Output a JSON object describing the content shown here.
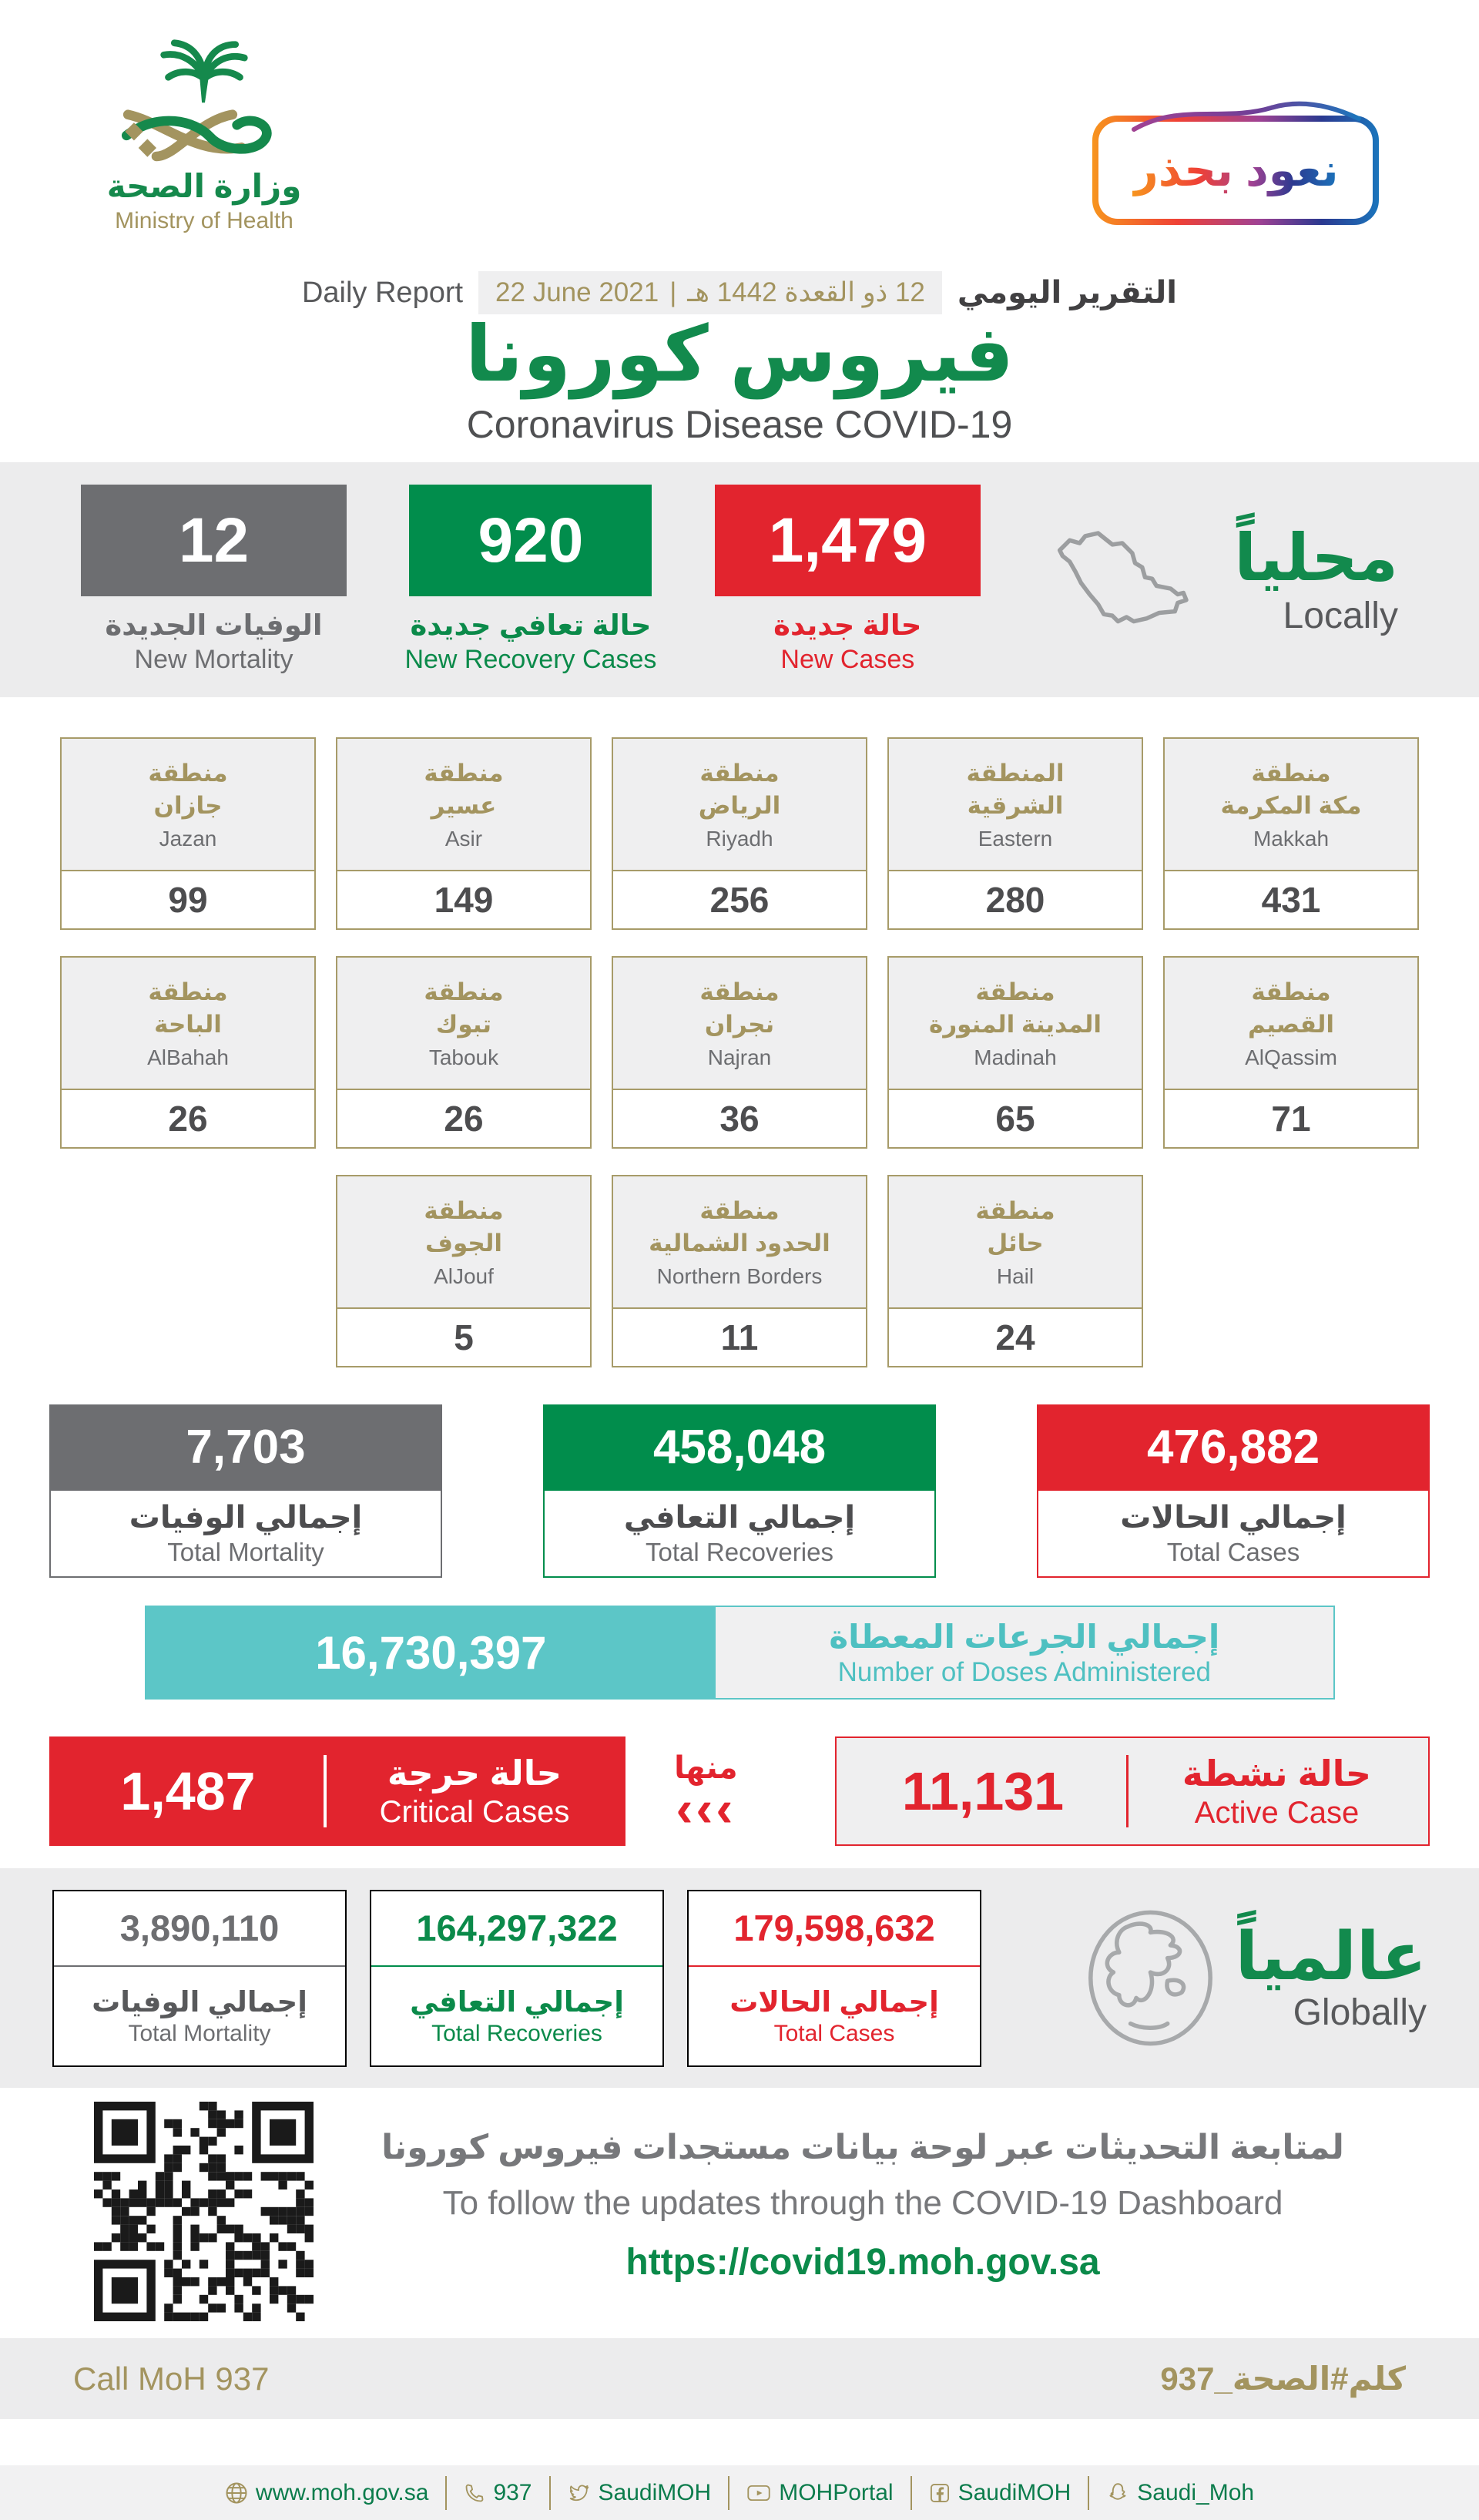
{
  "colors": {
    "green": "#128a4d",
    "red": "#e2242e",
    "gray": "#6d6e71",
    "gold": "#a3945f",
    "teal": "#5cc6c7",
    "dark": "#4d4d4f"
  },
  "header": {
    "logo": {
      "title_ar": "وزارة الصحة",
      "title_en": "Ministry of Health"
    },
    "badge": {
      "text": "نعود بحذر"
    },
    "report": {
      "label_en": "Daily Report",
      "date_en": "22 June 2021",
      "separator": "|",
      "date_ar": "12 ذو القعدة 1442 هـ",
      "label_ar": "التقرير اليومي"
    },
    "title_ar": "فيروس كورونا",
    "title_en": "Coronavirus Disease COVID-19"
  },
  "locally": {
    "heading_ar": "محلياً",
    "heading_en": "Locally",
    "mortality": {
      "value": "12",
      "label_ar": "الوفيات الجديدة",
      "label_en": "New Mortality"
    },
    "recovery": {
      "value": "920",
      "label_ar": "حالة تعافي جديدة",
      "label_en": "New Recovery Cases"
    },
    "cases": {
      "value": "1,479",
      "label_ar": "حالة جديدة",
      "label_en": "New Cases"
    }
  },
  "regions": {
    "row1": [
      {
        "ar1": "منطقة",
        "ar2": "جازان",
        "en": "Jazan",
        "value": "99"
      },
      {
        "ar1": "منطقة",
        "ar2": "عسير",
        "en": "Asir",
        "value": "149"
      },
      {
        "ar1": "منطقة",
        "ar2": "الرياض",
        "en": "Riyadh",
        "value": "256"
      },
      {
        "ar1": "المنطقة",
        "ar2": "الشرقية",
        "en": "Eastern",
        "value": "280"
      },
      {
        "ar1": "منطقة",
        "ar2": "مكة المكرمة",
        "en": "Makkah",
        "value": "431"
      }
    ],
    "row2": [
      {
        "ar1": "منطقة",
        "ar2": "الباحة",
        "en": "AlBahah",
        "value": "26"
      },
      {
        "ar1": "منطقة",
        "ar2": "تبوك",
        "en": "Tabouk",
        "value": "26"
      },
      {
        "ar1": "منطقة",
        "ar2": "نجران",
        "en": "Najran",
        "value": "36"
      },
      {
        "ar1": "منطقة",
        "ar2": "المدينة المنورة",
        "en": "Madinah",
        "value": "65"
      },
      {
        "ar1": "منطقة",
        "ar2": "القصيم",
        "en": "AlQassim",
        "value": "71"
      }
    ],
    "row3": [
      {
        "ar1": "منطقة",
        "ar2": "الجوف",
        "en": "AlJouf",
        "value": "5"
      },
      {
        "ar1": "منطقة",
        "ar2": "الحدود الشمالية",
        "en": "Northern Borders",
        "value": "11"
      },
      {
        "ar1": "منطقة",
        "ar2": "حائل",
        "en": "Hail",
        "value": "24"
      }
    ]
  },
  "totals": {
    "mortality": {
      "value": "7,703",
      "label_ar": "إجمالي الوفيات",
      "label_en": "Total Mortality"
    },
    "recoveries": {
      "value": "458,048",
      "label_ar": "إجمالي التعافي",
      "label_en": "Total Recoveries"
    },
    "cases": {
      "value": "476,882",
      "label_ar": "إجمالي الحالات",
      "label_en": "Total Cases"
    }
  },
  "doses": {
    "value": "16,730,397",
    "label_ar": "إجمالي الجرعات المعطاة",
    "label_en": "Number of Doses Administered"
  },
  "critical": {
    "value": "1,487",
    "label_ar": "حالة حرجة",
    "label_en": "Critical Cases",
    "of_which_ar": "منها",
    "chevrons": "‹‹‹"
  },
  "active": {
    "value": "11,131",
    "label_ar": "حالة نشطة",
    "label_en": "Active Case"
  },
  "globally": {
    "heading_ar": "عالمياً",
    "heading_en": "Globally",
    "mortality": {
      "value": "3,890,110",
      "label_ar": "إجمالي الوفيات",
      "label_en": "Total Mortality"
    },
    "recoveries": {
      "value": "164,297,322",
      "label_ar": "إجمالي التعافي",
      "label_en": "Total Recoveries"
    },
    "cases": {
      "value": "179,598,632",
      "label_ar": "إجمالي الحالات",
      "label_en": "Total Cases"
    }
  },
  "dashboard": {
    "text_ar": "لمتابعة التحديثات عبر لوحة بيانات مستجدات فيروس كورونا",
    "text_en": "To follow the updates through the COVID-19 Dashboard",
    "url": "https://covid19.moh.gov.sa"
  },
  "callband": {
    "en": "Call MoH 937",
    "ar": "كلم#الصحة_937"
  },
  "footer": {
    "items": [
      {
        "icon": "globe-icon",
        "label": "www.moh.gov.sa"
      },
      {
        "icon": "phone-icon",
        "label": "937"
      },
      {
        "icon": "twitter-icon",
        "label": "SaudiMOH"
      },
      {
        "icon": "youtube-icon",
        "label": "MOHPortal"
      },
      {
        "icon": "facebook-icon",
        "label": "SaudiMOH"
      },
      {
        "icon": "snapchat-icon",
        "label": "Saudi_Moh"
      }
    ]
  }
}
